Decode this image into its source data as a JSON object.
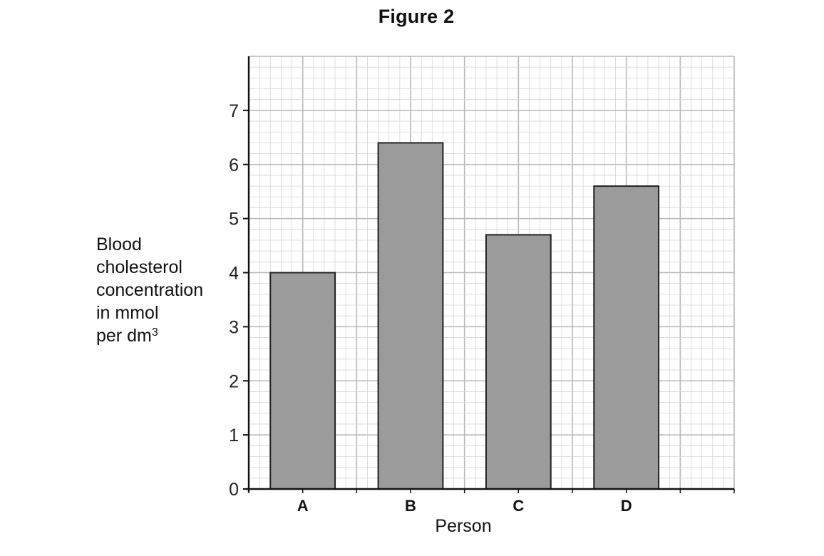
{
  "page_title": "Figure 2",
  "chart_data": {
    "type": "bar",
    "title": "Figure 2",
    "categories": [
      "A",
      "B",
      "C",
      "D"
    ],
    "values": [
      4.0,
      6.4,
      4.7,
      5.6
    ],
    "xlabel": "Person",
    "ylabel_lines": [
      "Blood",
      "cholesterol",
      "concentration",
      "in mmol",
      "per dm"
    ],
    "ylabel_superscript": "3",
    "yticks": [
      0,
      1,
      2,
      3,
      4,
      5,
      6,
      7
    ],
    "ylim": [
      0,
      8
    ],
    "grid": true,
    "bar_color": "#9b9b9b",
    "grid_major_color": "#b8b8b8",
    "grid_minor_color": "#d6d6d6"
  }
}
